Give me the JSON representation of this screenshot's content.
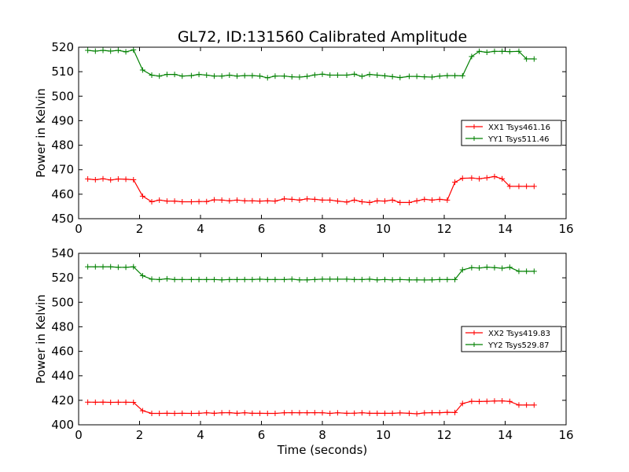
{
  "figure": {
    "title": "GL72, ID:131560 Calibrated Amplitude",
    "xlabel": "Time (seconds)"
  },
  "chart_data": [
    {
      "type": "line",
      "ylabel": "Power in Kelvin",
      "xlim": [
        0,
        16
      ],
      "ylim": [
        450,
        520
      ],
      "xticks": [
        0,
        2,
        4,
        6,
        8,
        10,
        12,
        14,
        16
      ],
      "yticks": [
        450,
        460,
        470,
        480,
        490,
        500,
        510,
        520
      ],
      "grid": false,
      "legend_position": "right",
      "series": [
        {
          "name": "XX1 Tsys461.16",
          "color": "#ff0000",
          "x": [
            0.3,
            0.55,
            0.8,
            1.05,
            1.3,
            1.55,
            1.8,
            2.1,
            2.4,
            2.65,
            2.9,
            3.15,
            3.4,
            3.7,
            3.95,
            4.2,
            4.45,
            4.7,
            4.95,
            5.2,
            5.45,
            5.7,
            5.95,
            6.2,
            6.45,
            6.75,
            7.0,
            7.25,
            7.5,
            7.75,
            8.0,
            8.25,
            8.5,
            8.8,
            9.05,
            9.3,
            9.55,
            9.8,
            10.05,
            10.3,
            10.55,
            10.85,
            11.1,
            11.35,
            11.6,
            11.85,
            12.1,
            12.35,
            12.6,
            12.9,
            13.15,
            13.4,
            13.65,
            13.9,
            14.15,
            14.45,
            14.7,
            14.95
          ],
          "y": [
            466.2,
            465.9,
            466.3,
            465.8,
            466.2,
            466.1,
            465.9,
            459.2,
            456.9,
            457.6,
            457.2,
            457.2,
            456.9,
            456.9,
            457.0,
            457.0,
            457.7,
            457.6,
            457.3,
            457.6,
            457.3,
            457.3,
            457.2,
            457.3,
            457.2,
            458.1,
            457.9,
            457.6,
            458.1,
            457.9,
            457.6,
            457.6,
            457.2,
            456.8,
            457.6,
            456.9,
            456.6,
            457.3,
            457.2,
            457.6,
            456.6,
            456.6,
            457.3,
            457.9,
            457.6,
            457.9,
            457.6,
            464.9,
            466.5,
            466.6,
            466.3,
            466.7,
            467.2,
            466.3,
            463.2,
            463.2,
            463.2,
            463.2
          ]
        },
        {
          "name": "YY1 Tsys511.46",
          "color": "#008000",
          "x": [
            0.3,
            0.55,
            0.8,
            1.05,
            1.3,
            1.55,
            1.8,
            2.1,
            2.4,
            2.65,
            2.9,
            3.15,
            3.4,
            3.7,
            3.95,
            4.2,
            4.45,
            4.7,
            4.95,
            5.2,
            5.45,
            5.7,
            5.95,
            6.2,
            6.45,
            6.75,
            7.0,
            7.25,
            7.5,
            7.75,
            8.0,
            8.25,
            8.5,
            8.8,
            9.05,
            9.3,
            9.55,
            9.8,
            10.05,
            10.3,
            10.55,
            10.85,
            11.1,
            11.35,
            11.6,
            11.85,
            12.1,
            12.35,
            12.6,
            12.9,
            13.15,
            13.4,
            13.65,
            13.9,
            14.15,
            14.45,
            14.7,
            14.95
          ],
          "y": [
            518.7,
            518.4,
            518.7,
            518.4,
            518.7,
            518.1,
            518.9,
            510.7,
            508.6,
            508.2,
            508.9,
            508.9,
            508.2,
            508.4,
            508.9,
            508.6,
            508.2,
            508.2,
            508.6,
            508.2,
            508.4,
            508.4,
            508.2,
            507.5,
            508.2,
            508.2,
            507.9,
            507.8,
            508.1,
            508.7,
            509.0,
            508.6,
            508.6,
            508.6,
            509.0,
            508.1,
            508.9,
            508.6,
            508.3,
            508.0,
            507.6,
            508.1,
            508.1,
            507.9,
            507.8,
            508.2,
            508.4,
            508.4,
            508.3,
            516.2,
            518.3,
            517.9,
            518.3,
            518.3,
            518.2,
            518.3,
            515.2,
            515.2
          ]
        }
      ]
    },
    {
      "type": "line",
      "ylabel": "Power in Kelvin",
      "xlim": [
        0,
        16
      ],
      "ylim": [
        400,
        540
      ],
      "xticks": [
        0,
        2,
        4,
        6,
        8,
        10,
        12,
        14,
        16
      ],
      "yticks": [
        400,
        420,
        440,
        460,
        480,
        500,
        520,
        540
      ],
      "grid": false,
      "legend_position": "right",
      "series": [
        {
          "name": "XX2 Tsys419.83",
          "color": "#ff0000",
          "x": [
            0.3,
            0.55,
            0.8,
            1.05,
            1.3,
            1.55,
            1.8,
            2.1,
            2.4,
            2.65,
            2.9,
            3.15,
            3.4,
            3.7,
            3.95,
            4.2,
            4.45,
            4.7,
            4.95,
            5.2,
            5.45,
            5.7,
            5.95,
            6.2,
            6.45,
            6.75,
            7.0,
            7.25,
            7.5,
            7.75,
            8.0,
            8.25,
            8.5,
            8.8,
            9.05,
            9.3,
            9.55,
            9.8,
            10.05,
            10.3,
            10.55,
            10.85,
            11.1,
            11.35,
            11.6,
            11.85,
            12.1,
            12.35,
            12.6,
            12.9,
            13.15,
            13.4,
            13.65,
            13.9,
            14.15,
            14.45,
            14.7,
            14.95
          ],
          "y": [
            418.5,
            418.4,
            418.5,
            418.3,
            418.4,
            418.4,
            418.3,
            411.5,
            409.3,
            409.3,
            409.4,
            409.3,
            409.4,
            409.3,
            409.4,
            409.8,
            409.4,
            409.8,
            409.9,
            409.4,
            409.8,
            409.4,
            409.4,
            409.3,
            409.3,
            409.8,
            409.9,
            409.8,
            409.8,
            409.9,
            409.8,
            409.3,
            409.8,
            409.4,
            409.5,
            409.8,
            409.4,
            409.4,
            409.4,
            409.4,
            409.7,
            409.4,
            409.0,
            409.7,
            409.9,
            409.9,
            410.2,
            410.0,
            417.4,
            419.2,
            419.0,
            419.2,
            419.4,
            419.5,
            419.1,
            416.1,
            416.1,
            416.1
          ]
        },
        {
          "name": "YY2 Tsys529.87",
          "color": "#008000",
          "x": [
            0.3,
            0.55,
            0.8,
            1.05,
            1.3,
            1.55,
            1.8,
            2.1,
            2.4,
            2.65,
            2.9,
            3.15,
            3.4,
            3.7,
            3.95,
            4.2,
            4.45,
            4.7,
            4.95,
            5.2,
            5.45,
            5.7,
            5.95,
            6.2,
            6.45,
            6.75,
            7.0,
            7.25,
            7.5,
            7.75,
            8.0,
            8.25,
            8.5,
            8.8,
            9.05,
            9.3,
            9.55,
            9.8,
            10.05,
            10.3,
            10.55,
            10.85,
            11.1,
            11.35,
            11.6,
            11.85,
            12.1,
            12.35,
            12.6,
            12.9,
            13.15,
            13.4,
            13.65,
            13.9,
            14.15,
            14.45,
            14.7,
            14.95
          ],
          "y": [
            529.0,
            529.0,
            529.0,
            529.0,
            528.6,
            528.6,
            529.0,
            521.7,
            518.9,
            518.6,
            519.2,
            518.6,
            518.6,
            518.6,
            518.6,
            518.6,
            518.6,
            518.3,
            518.6,
            518.6,
            518.6,
            518.6,
            518.9,
            518.6,
            518.6,
            518.6,
            518.9,
            518.3,
            518.3,
            518.6,
            518.9,
            518.9,
            518.9,
            518.9,
            518.6,
            518.6,
            518.9,
            518.3,
            518.6,
            518.3,
            518.6,
            518.3,
            518.3,
            518.2,
            518.3,
            518.6,
            518.6,
            518.6,
            526.5,
            528.3,
            528.0,
            528.7,
            528.3,
            527.8,
            528.6,
            525.3,
            525.3,
            525.3
          ]
        }
      ]
    }
  ]
}
